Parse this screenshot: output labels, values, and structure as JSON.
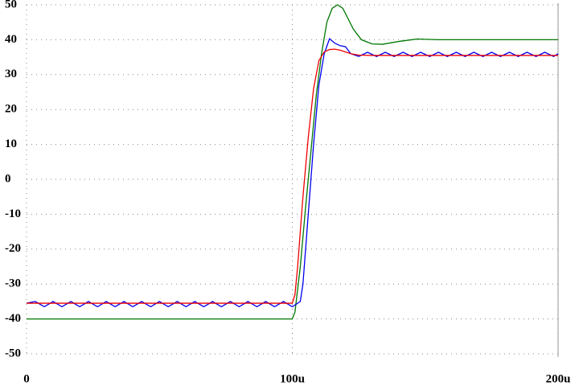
{
  "chart_data": {
    "type": "line",
    "xlim": [
      0,
      200
    ],
    "ylim": [
      -50,
      50
    ],
    "xticks": [
      {
        "value": 0,
        "label": "0"
      },
      {
        "value": 100,
        "label": "100u"
      },
      {
        "value": 200,
        "label": "200u"
      }
    ],
    "yticks": [
      -50,
      -40,
      -30,
      -20,
      -10,
      0,
      10,
      20,
      30,
      40,
      50
    ],
    "grid": true,
    "series": [
      {
        "color": "#007700",
        "x": [
          0,
          100,
          101,
          103,
          105,
          107,
          109,
          111,
          113,
          115,
          117,
          119,
          121,
          123,
          126,
          130,
          134,
          140,
          147,
          155,
          170,
          200
        ],
        "values": [
          -40,
          -40,
          -38,
          -25,
          -8,
          8,
          24,
          36,
          45,
          49,
          50,
          49,
          46,
          43,
          40,
          38.8,
          38.7,
          39.5,
          40.2,
          40,
          40,
          40
        ]
      },
      {
        "color": "#0000ee",
        "x": [
          0,
          3.3,
          6.7,
          10,
          13.3,
          16.7,
          20,
          23.3,
          26.7,
          30,
          33.3,
          36.7,
          40,
          43.3,
          46.7,
          50,
          53.3,
          56.7,
          60,
          63.3,
          66.7,
          70,
          73.3,
          76.7,
          80,
          83.3,
          86.7,
          90,
          93.3,
          96.7,
          100,
          103,
          104,
          106,
          108,
          110,
          112,
          114,
          116,
          118,
          120,
          122,
          125,
          128.3,
          131.7,
          135,
          138.3,
          141.7,
          145,
          148.3,
          151.7,
          155,
          158.3,
          161.7,
          165,
          168.3,
          171.7,
          175,
          178.3,
          181.7,
          185,
          188.3,
          191.7,
          195,
          198.3,
          200
        ],
        "values": [
          -35.5,
          -35,
          -36.5,
          -35,
          -36.5,
          -35,
          -36.5,
          -35,
          -36.5,
          -35,
          -36.5,
          -35,
          -36.5,
          -35,
          -36.5,
          -35,
          -36.5,
          -35,
          -36.5,
          -35,
          -36.5,
          -35,
          -36.5,
          -35,
          -36.5,
          -35,
          -36.5,
          -35,
          -36.5,
          -35,
          -36.5,
          -35,
          -30,
          -10,
          10,
          27,
          36,
          40.3,
          39,
          38.3,
          38,
          36,
          35.2,
          36.4,
          35.2,
          36.4,
          35.2,
          36.4,
          35.2,
          36.4,
          35.2,
          36.4,
          35.2,
          36.4,
          35.2,
          36.4,
          35.2,
          36.4,
          35.2,
          36.4,
          35.2,
          36.4,
          35.2,
          36.4,
          35.2,
          36
        ]
      },
      {
        "color": "#ee0000",
        "x": [
          0,
          100,
          101,
          102,
          104,
          106,
          108,
          110,
          112,
          114,
          116,
          118,
          120,
          122,
          125,
          130,
          200
        ],
        "values": [
          -35.5,
          -35.5,
          -33,
          -25,
          -5,
          12,
          26,
          34,
          36.5,
          37.2,
          37.3,
          37,
          36.5,
          36,
          35.6,
          35.5,
          35.5
        ]
      }
    ]
  }
}
